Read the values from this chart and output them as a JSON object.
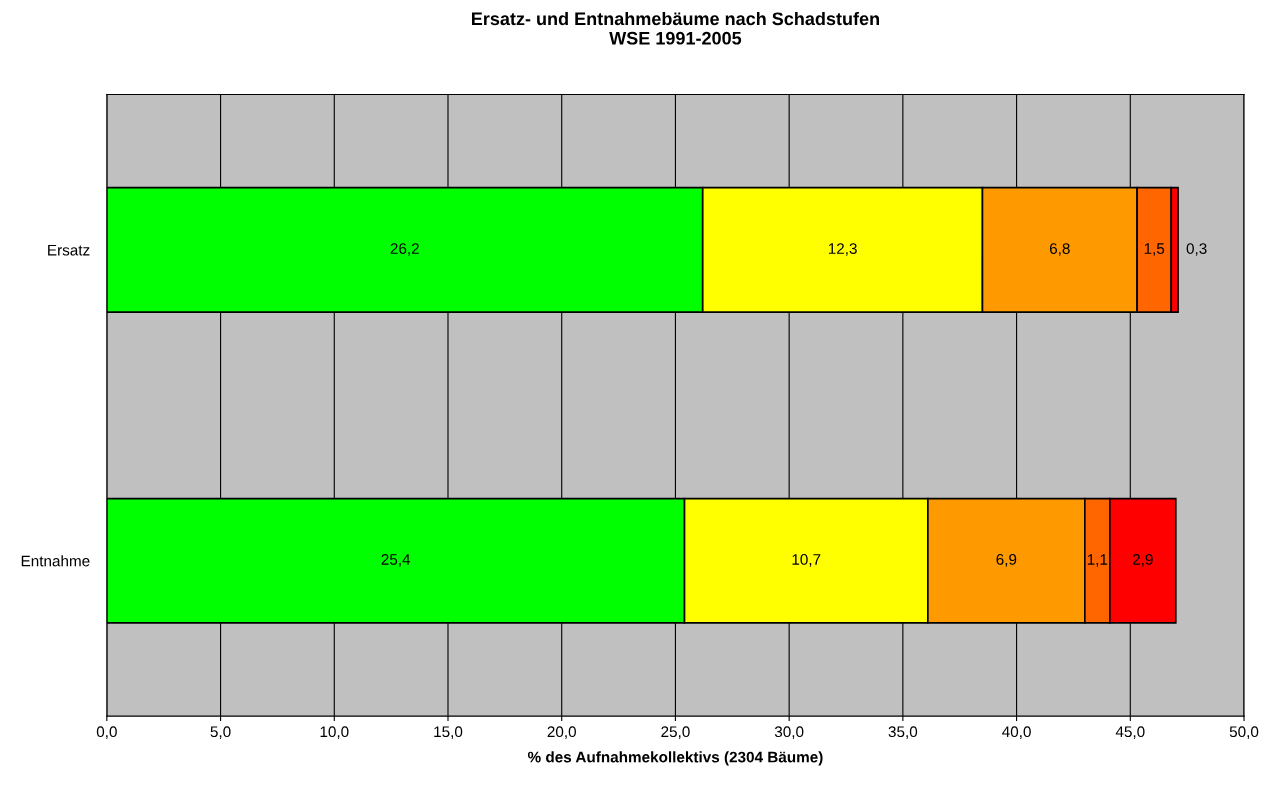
{
  "chart_data": {
    "type": "bar",
    "orientation": "horizontal",
    "stacked": true,
    "title": "Ersatz- und Entnahmebäume nach Schadstufen\nWSE 1991-2005",
    "xlabel": "% des Aufnahmekollektivs (2304 Bäume)",
    "categories": [
      "Ersatz",
      "Entnahme"
    ],
    "series": [
      {
        "color": "#00ff00",
        "values": [
          26.2,
          25.4
        ],
        "value_labels": [
          "26,2",
          "25,4"
        ]
      },
      {
        "color": "#ffff00",
        "values": [
          12.3,
          10.7
        ],
        "value_labels": [
          "12,3",
          "10,7"
        ]
      },
      {
        "color": "#ff9900",
        "values": [
          6.8,
          6.9
        ],
        "value_labels": [
          "6,8",
          "6,9"
        ]
      },
      {
        "color": "#ff6600",
        "values": [
          1.5,
          1.1
        ],
        "value_labels": [
          "1,5",
          "1,1"
        ]
      },
      {
        "color": "#ff0000",
        "values": [
          0.3,
          2.9
        ],
        "value_labels": [
          "0,3",
          "2,9"
        ]
      }
    ],
    "xlim": [
      0,
      50
    ],
    "xticks": [
      {
        "value": 0,
        "label": "0,0"
      },
      {
        "value": 5,
        "label": "5,0"
      },
      {
        "value": 10,
        "label": "10,0"
      },
      {
        "value": 15,
        "label": "15,0"
      },
      {
        "value": 20,
        "label": "20,0"
      },
      {
        "value": 25,
        "label": "25,0"
      },
      {
        "value": 30,
        "label": "30,0"
      },
      {
        "value": 35,
        "label": "35,0"
      },
      {
        "value": 40,
        "label": "40,0"
      },
      {
        "value": 45,
        "label": "45,0"
      },
      {
        "value": 50,
        "label": "50,0"
      }
    ],
    "grid": "x"
  }
}
